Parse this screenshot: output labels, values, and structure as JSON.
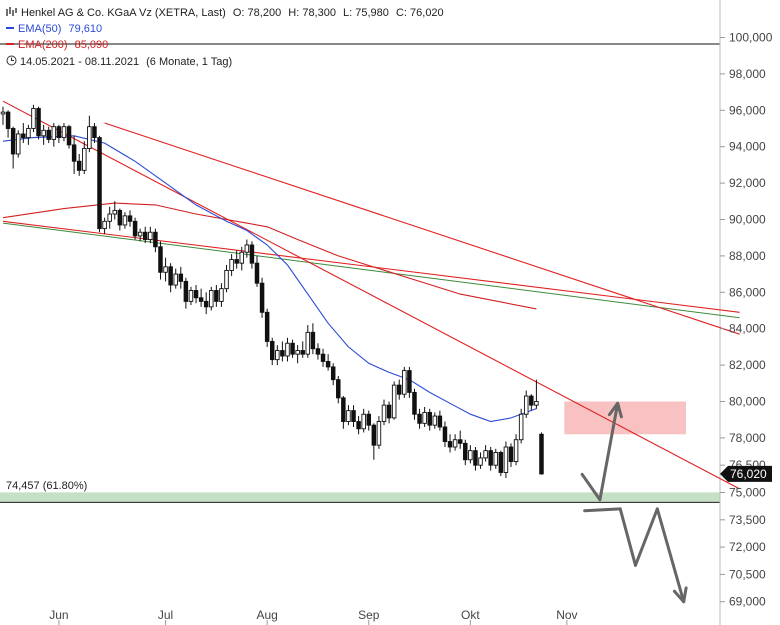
{
  "header": {
    "instrument": "Henkel AG & Co. KGaA Vz (XETRA, Last)",
    "open": "O: 78,200",
    "high": "H: 78,300",
    "low": "L: 75,980",
    "close": "C: 76,020",
    "ema50_label": "EMA(50)",
    "ema50_value": "79,610",
    "ema200_label": "EMA(200)",
    "ema200_value": "85,090",
    "period": "14.05.2021 - 08.11.2021",
    "period_detail": "(6 Monate, 1 Tag)"
  },
  "colors": {
    "candle": "#111111",
    "ema50": "#2b4bd6",
    "ema200": "#d42020",
    "trendline": "#e02020",
    "longterm_line": "#3c8a3c",
    "resistance_zone": "#f9c2c2",
    "fib_zone": "#c5e0c5",
    "projection_arrow": "#666666",
    "last_price_tag": "#111111"
  },
  "chart_data": {
    "type": "candlestick",
    "x_labels": [
      "Jun",
      "Jul",
      "Aug",
      "Sep",
      "Okt",
      "Nov"
    ],
    "y_ticks": [
      "100,000",
      "98,000",
      "96,000",
      "94,000",
      "92,000",
      "90,000",
      "88,000",
      "86,000",
      "84,000",
      "82,000",
      "80,000",
      "78,000",
      "76,500",
      "75,000",
      "73,500",
      "72,000",
      "70,500",
      "69,000"
    ],
    "ylim": [
      69,
      100.5
    ],
    "last_price": "76,020",
    "fib_label": "74,457 (61.80%)",
    "fib_level": 74.457,
    "resistance_zone": [
      78.2,
      80.0
    ],
    "candles": [
      [
        95.8,
        96.2,
        95.2,
        95.9
      ],
      [
        95.9,
        96.0,
        94.5,
        95.0
      ],
      [
        95.0,
        95.1,
        92.8,
        93.6
      ],
      [
        93.6,
        94.9,
        93.4,
        94.7
      ],
      [
        94.7,
        95.3,
        94.2,
        94.5
      ],
      [
        94.5,
        95.2,
        94.1,
        95.0
      ],
      [
        95.0,
        96.3,
        94.8,
        96.1
      ],
      [
        96.1,
        96.2,
        94.4,
        94.6
      ],
      [
        94.6,
        95.2,
        94.1,
        94.9
      ],
      [
        94.9,
        95.1,
        94.2,
        94.4
      ],
      [
        94.4,
        95.3,
        94.0,
        95.1
      ],
      [
        95.1,
        95.2,
        94.2,
        94.5
      ],
      [
        94.5,
        95.3,
        94.3,
        95.1
      ],
      [
        95.1,
        95.2,
        93.9,
        94.1
      ],
      [
        94.1,
        94.6,
        92.5,
        93.2
      ],
      [
        93.2,
        93.6,
        92.4,
        92.7
      ],
      [
        92.7,
        94.3,
        92.5,
        93.9
      ],
      [
        93.9,
        95.7,
        93.7,
        95.1
      ],
      [
        95.1,
        95.3,
        94.2,
        94.5
      ],
      [
        94.5,
        94.6,
        89.3,
        89.5
      ],
      [
        89.5,
        90.1,
        89.2,
        89.9
      ],
      [
        89.9,
        90.7,
        89.5,
        90.3
      ],
      [
        90.3,
        91.0,
        90.0,
        90.5
      ],
      [
        90.5,
        90.6,
        89.4,
        89.7
      ],
      [
        89.7,
        90.4,
        89.5,
        90.2
      ],
      [
        90.2,
        90.5,
        89.6,
        89.9
      ],
      [
        89.9,
        90.1,
        88.9,
        89.1
      ],
      [
        89.1,
        89.5,
        88.8,
        89.3
      ],
      [
        89.3,
        89.6,
        88.7,
        88.9
      ],
      [
        88.9,
        89.6,
        88.7,
        89.3
      ],
      [
        89.3,
        89.5,
        88.2,
        88.5
      ],
      [
        88.5,
        88.8,
        86.7,
        87.1
      ],
      [
        87.1,
        87.9,
        86.6,
        87.4
      ],
      [
        87.4,
        87.6,
        86.0,
        86.4
      ],
      [
        86.4,
        87.3,
        86.2,
        87.0
      ],
      [
        87.0,
        87.4,
        86.2,
        86.6
      ],
      [
        86.6,
        86.8,
        85.1,
        85.5
      ],
      [
        85.5,
        86.3,
        85.3,
        86.1
      ],
      [
        86.1,
        86.4,
        85.4,
        85.7
      ],
      [
        85.7,
        86.2,
        85.2,
        85.5
      ],
      [
        85.5,
        86.0,
        84.8,
        85.2
      ],
      [
        85.2,
        86.3,
        85.0,
        86.1
      ],
      [
        86.1,
        86.4,
        85.2,
        85.5
      ],
      [
        85.5,
        86.5,
        85.2,
        86.2
      ],
      [
        86.2,
        87.5,
        86.0,
        87.2
      ],
      [
        87.2,
        88.1,
        86.9,
        87.8
      ],
      [
        87.8,
        88.3,
        87.3,
        87.6
      ],
      [
        87.6,
        88.5,
        87.2,
        88.2
      ],
      [
        88.2,
        88.9,
        87.9,
        88.6
      ],
      [
        88.6,
        88.8,
        87.3,
        87.6
      ],
      [
        87.6,
        88.0,
        86.3,
        86.5
      ],
      [
        86.5,
        86.8,
        84.6,
        84.9
      ],
      [
        84.9,
        85.1,
        83.0,
        83.3
      ],
      [
        83.3,
        83.5,
        82.0,
        82.3
      ],
      [
        82.3,
        83.1,
        82.0,
        82.8
      ],
      [
        82.8,
        83.3,
        82.2,
        82.5
      ],
      [
        82.5,
        83.5,
        82.2,
        83.2
      ],
      [
        83.2,
        83.4,
        82.4,
        82.6
      ],
      [
        82.6,
        83.1,
        82.1,
        82.8
      ],
      [
        82.8,
        83.3,
        82.4,
        82.6
      ],
      [
        82.6,
        84.2,
        82.4,
        83.8
      ],
      [
        83.8,
        84.3,
        82.6,
        82.9
      ],
      [
        82.9,
        83.2,
        82.3,
        82.6
      ],
      [
        82.6,
        82.9,
        81.9,
        82.2
      ],
      [
        82.2,
        82.6,
        81.7,
        81.9
      ],
      [
        81.9,
        82.1,
        80.9,
        81.2
      ],
      [
        81.2,
        81.4,
        79.9,
        80.2
      ],
      [
        80.2,
        80.3,
        78.5,
        78.9
      ],
      [
        78.9,
        79.8,
        78.7,
        79.5
      ],
      [
        79.5,
        79.8,
        78.6,
        78.9
      ],
      [
        78.9,
        79.2,
        78.2,
        78.5
      ],
      [
        78.5,
        79.6,
        78.3,
        79.3
      ],
      [
        79.3,
        79.5,
        78.4,
        78.7
      ],
      [
        78.7,
        78.8,
        76.8,
        77.6
      ],
      [
        77.6,
        79.2,
        77.4,
        78.9
      ],
      [
        78.9,
        80.1,
        78.7,
        79.8
      ],
      [
        79.8,
        80.0,
        78.8,
        79.1
      ],
      [
        79.1,
        81.1,
        79.0,
        80.9
      ],
      [
        80.9,
        81.2,
        80.1,
        80.4
      ],
      [
        80.4,
        81.9,
        80.2,
        81.7
      ],
      [
        81.7,
        81.9,
        80.2,
        80.5
      ],
      [
        80.5,
        80.7,
        79.0,
        79.3
      ],
      [
        79.3,
        79.6,
        78.5,
        78.8
      ],
      [
        78.8,
        79.7,
        78.6,
        79.4
      ],
      [
        79.4,
        79.6,
        78.4,
        78.7
      ],
      [
        78.7,
        79.4,
        78.5,
        79.2
      ],
      [
        79.2,
        79.5,
        78.4,
        78.6
      ],
      [
        78.6,
        78.9,
        77.5,
        77.8
      ],
      [
        77.8,
        78.2,
        77.2,
        77.5
      ],
      [
        77.5,
        78.2,
        77.3,
        77.9
      ],
      [
        77.9,
        78.4,
        77.4,
        77.7
      ],
      [
        77.7,
        77.9,
        76.5,
        76.8
      ],
      [
        76.8,
        77.6,
        76.6,
        77.3
      ],
      [
        77.3,
        77.5,
        76.2,
        76.5
      ],
      [
        76.5,
        77.2,
        76.3,
        76.9
      ],
      [
        76.9,
        77.6,
        76.7,
        77.3
      ],
      [
        77.3,
        77.5,
        76.2,
        76.5
      ],
      [
        76.5,
        77.4,
        76.3,
        77.2
      ],
      [
        77.2,
        77.3,
        75.9,
        76.1
      ],
      [
        76.1,
        77.8,
        75.8,
        77.5
      ],
      [
        77.5,
        77.7,
        76.4,
        76.7
      ],
      [
        76.7,
        78.2,
        76.5,
        77.9
      ],
      [
        77.9,
        79.6,
        77.7,
        79.3
      ],
      [
        79.3,
        80.6,
        79.1,
        80.3
      ],
      [
        80.3,
        80.4,
        79.5,
        79.8
      ],
      [
        79.8,
        81.2,
        79.6,
        80.0
      ],
      [
        78.2,
        78.3,
        75.98,
        76.02
      ]
    ],
    "ema50": [
      [
        94.3,
        0
      ],
      [
        94.5,
        6
      ],
      [
        94.6,
        14
      ],
      [
        94.2,
        20
      ],
      [
        93.2,
        26
      ],
      [
        92.0,
        32
      ],
      [
        90.8,
        38
      ],
      [
        89.9,
        44
      ],
      [
        89.4,
        48
      ],
      [
        88.6,
        52
      ],
      [
        87.5,
        56
      ],
      [
        85.9,
        60
      ],
      [
        84.3,
        64
      ],
      [
        83.0,
        68
      ],
      [
        82.1,
        72
      ],
      [
        81.6,
        76
      ],
      [
        81.2,
        80
      ],
      [
        80.5,
        84
      ],
      [
        79.9,
        88
      ],
      [
        79.3,
        92
      ],
      [
        78.9,
        96
      ],
      [
        79.1,
        100
      ],
      [
        79.61,
        105
      ]
    ],
    "ema200": [
      [
        90.1,
        0
      ],
      [
        90.6,
        12
      ],
      [
        90.9,
        22
      ],
      [
        90.8,
        30
      ],
      [
        90.3,
        38
      ],
      [
        89.9,
        46
      ],
      [
        89.6,
        52
      ],
      [
        88.9,
        58
      ],
      [
        88.0,
        66
      ],
      [
        87.3,
        74
      ],
      [
        86.6,
        82
      ],
      [
        85.9,
        90
      ],
      [
        85.09,
        105
      ]
    ],
    "trendlines": [
      {
        "role": "steep",
        "from": [
          96.5,
          0
        ],
        "to": [
          75.2,
          145
        ]
      },
      {
        "role": "upper",
        "from": [
          95.3,
          20
        ],
        "to": [
          83.7,
          145
        ]
      },
      {
        "role": "lower",
        "from": [
          89.9,
          0
        ],
        "to": [
          84.9,
          145
        ]
      }
    ],
    "longterm_line": {
      "from": [
        89.8,
        0
      ],
      "to": [
        84.6,
        145
      ]
    },
    "projection_arrow": [
      [
        76.0,
        114
      ],
      [
        74.6,
        117.5
      ],
      [
        79.9,
        121
      ],
      [
        74.0,
        114.5
      ],
      [
        74.1,
        121.5
      ],
      [
        71.0,
        124.5
      ],
      [
        74.1,
        128.8
      ],
      [
        69.0,
        134
      ]
    ]
  }
}
